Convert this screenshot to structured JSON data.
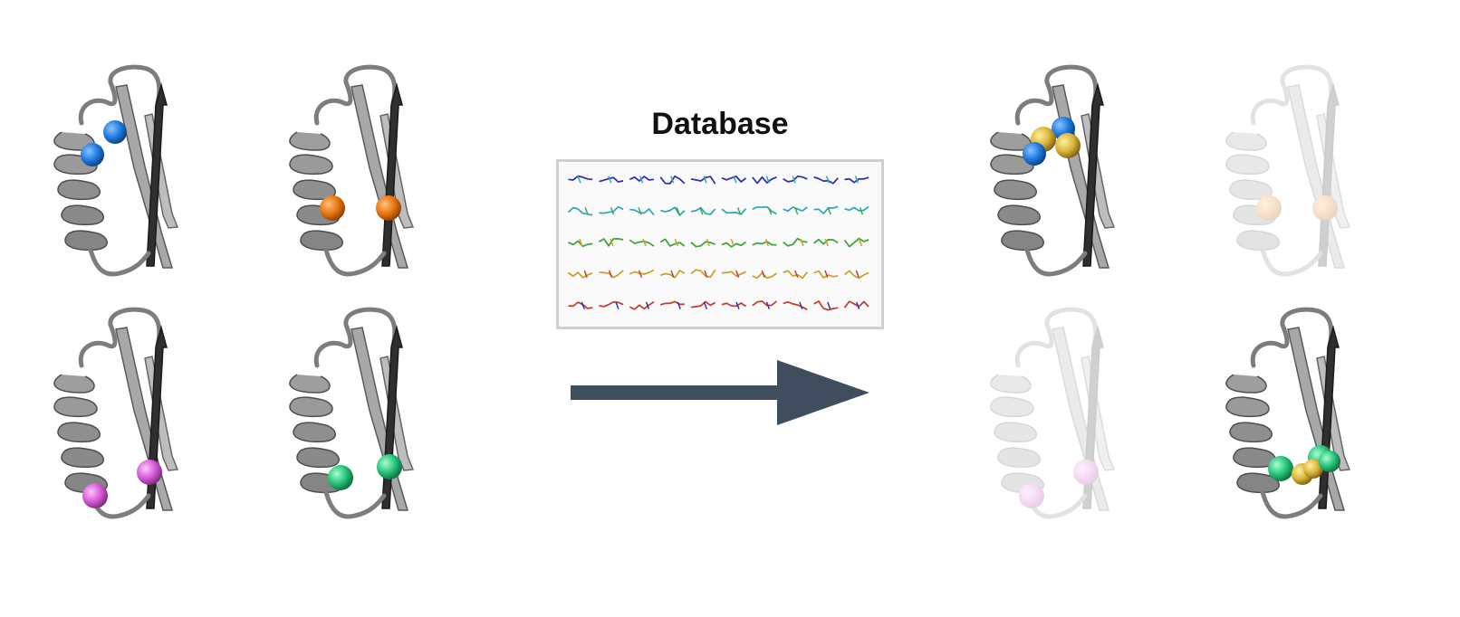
{
  "database": {
    "title": "Database",
    "fragment_colors": [
      "#2b2fb0",
      "#2aa8c0",
      "#3aa63a",
      "#c7a229",
      "#c83a2f"
    ]
  },
  "input_proteins": [
    {
      "name": "protein-blue-pair",
      "sphere_color": "#1f7be0"
    },
    {
      "name": "protein-orange-pair",
      "sphere_color": "#e8750f"
    },
    {
      "name": "protein-magenta-pair",
      "sphere_color": "#d65ad6"
    },
    {
      "name": "protein-green-pair",
      "sphere_color": "#25c37a"
    }
  ],
  "output_proteins": [
    {
      "name": "result-blue-pair",
      "sphere_color": "#1f7be0",
      "bridge_color": "#d9b53a",
      "faded": false
    },
    {
      "name": "result-orange-pair",
      "sphere_color": "#e8750f",
      "faded": true
    },
    {
      "name": "result-magenta-pair",
      "sphere_color": "#d65ad6",
      "faded": true
    },
    {
      "name": "result-green-pair",
      "sphere_color": "#25c37a",
      "bridge_color": "#d9b53a",
      "faded": false
    }
  ],
  "arrow_color": "#3f4d5e"
}
